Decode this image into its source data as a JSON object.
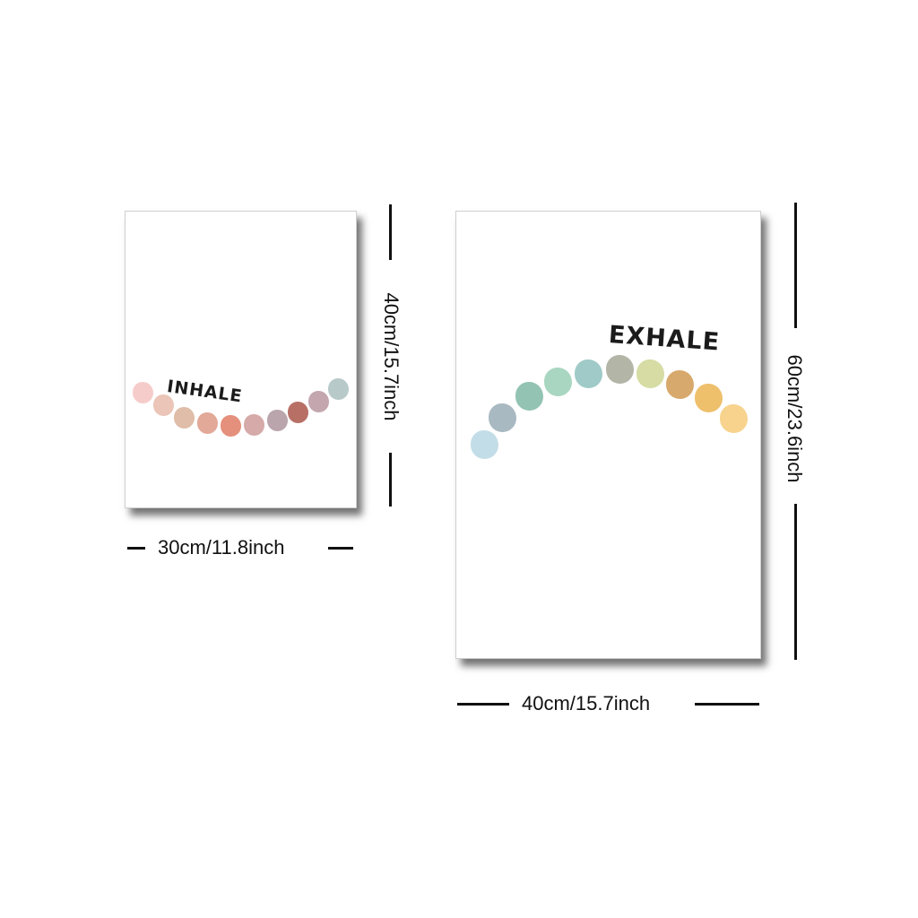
{
  "posters": {
    "left": {
      "word": "INHALE",
      "dot_colors": [
        "#f6cccb",
        "#ebc5b7",
        "#dfbda9",
        "#e2a898",
        "#e4907c",
        "#d5aaa8",
        "#b9a5ab",
        "#b87066",
        "#c3a6ae",
        "#b7c9c8"
      ]
    },
    "right": {
      "word": "EXHALE",
      "dot_colors": [
        "#c3dde8",
        "#a9b9c2",
        "#93c3b2",
        "#a9d6c1",
        "#9fcac7",
        "#b3b5a7",
        "#d6dca3",
        "#d8a96c",
        "#eec06c",
        "#f7d38e"
      ]
    }
  },
  "dimensions": {
    "left_width": "30cm/11.8inch",
    "left_height": "40cm/15.7inch",
    "right_width": "40cm/15.7inch",
    "right_height": "60cm/23.6inch"
  },
  "colors": {
    "background": "#ffffff",
    "text": "#111111"
  }
}
